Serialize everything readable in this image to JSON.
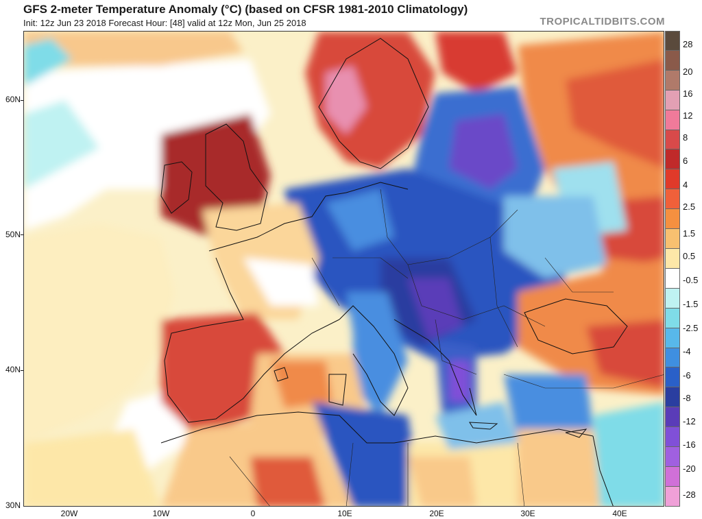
{
  "header": {
    "title": "GFS 2-meter Temperature Anomaly (°C) (based on CFSR 1981-2010 Climatology)",
    "subtitle": "Init: 12z Jun 23 2018   Forecast Hour: [48]   valid at 12z Mon, Jun 25 2018",
    "brand": "TROPICALTIDBITS.COM"
  },
  "axes": {
    "lat_labels": [
      "60N",
      "50N",
      "40N",
      "30N"
    ],
    "lon_labels": [
      "20W",
      "10W",
      "0",
      "10E",
      "20E",
      "30E",
      "40E"
    ]
  },
  "colorbar": {
    "labels": [
      "28",
      "20",
      "16",
      "12",
      "8",
      "6",
      "4",
      "2.5",
      "1.5",
      "0.5",
      "-0.5",
      "-1.5",
      "-2.5",
      "-4",
      "-6",
      "-8",
      "-12",
      "-16",
      "-20",
      "-28"
    ],
    "colors": [
      "#5a4a3c",
      "#8a5a4a",
      "#b07a6a",
      "#e3a0b4",
      "#f07a9a",
      "#d84a4a",
      "#c02a2a",
      "#e03a2a",
      "#f0603a",
      "#f59040",
      "#f8c070",
      "#fde7a8",
      "#ffffff",
      "#bff2f2",
      "#7fdce8",
      "#58b8ea",
      "#3f8fe0",
      "#2a60c8",
      "#2a3ea0",
      "#5a3cb8",
      "#8050d8",
      "#a060e0",
      "#d070d8",
      "#f0a0d8"
    ]
  },
  "map_colors": {
    "ocean_neutral": "#fbf0c8",
    "warm_light": "#f9c98a",
    "warm": "#f08a4a",
    "hot": "#d83a30",
    "very_hot": "#a82a2a",
    "cool_light": "#9fe0ee",
    "cool": "#4a8ee0",
    "cold": "#2a55c0",
    "very_cold": "#6a48c8",
    "white": "#ffffff"
  }
}
